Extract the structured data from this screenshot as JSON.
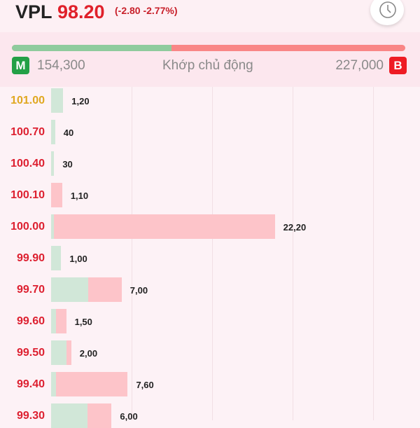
{
  "header": {
    "symbol": "VPL",
    "price": "98.20",
    "change": "(-2.80 -2.77%)",
    "history_icon": "clock-icon"
  },
  "summary": {
    "buy_badge": "M",
    "buy_volume": "154,300",
    "label": "Khớp chủ động",
    "sell_badge": "B",
    "sell_volume": "227,000",
    "buy_fraction": 0.405,
    "colors": {
      "buy": "#8fcb9d",
      "sell": "#f98686"
    }
  },
  "ladder": {
    "colors": {
      "ceiling": "#e0a820",
      "up": "#dd2030",
      "buy_bar": "#d1e7d8",
      "sell_bar": "#fdc4c9"
    },
    "rows": [
      {
        "price": "101.00",
        "price_type": "ceiling",
        "qty": "1,20",
        "buy": 1.2,
        "sell": 0
      },
      {
        "price": "100.70",
        "price_type": "up",
        "qty": "40",
        "buy": 0.4,
        "sell": 0
      },
      {
        "price": "100.40",
        "price_type": "up",
        "qty": "30",
        "buy": 0.3,
        "sell": 0
      },
      {
        "price": "100.10",
        "price_type": "up",
        "qty": "1,10",
        "buy": 0,
        "sell": 1.1
      },
      {
        "price": "100.00",
        "price_type": "up",
        "qty": "22,20",
        "buy": 0.3,
        "sell": 21.9
      },
      {
        "price": "99.90",
        "price_type": "up",
        "qty": "1,00",
        "buy": 1.0,
        "sell": 0
      },
      {
        "price": "99.70",
        "price_type": "up",
        "qty": "7,00",
        "buy": 3.7,
        "sell": 3.3
      },
      {
        "price": "99.60",
        "price_type": "up",
        "qty": "1,50",
        "buy": 0.5,
        "sell": 1.0
      },
      {
        "price": "99.50",
        "price_type": "up",
        "qty": "2,00",
        "buy": 1.5,
        "sell": 0.5
      },
      {
        "price": "99.40",
        "price_type": "up",
        "qty": "7,60",
        "buy": 0.5,
        "sell": 7.1
      },
      {
        "price": "99.30",
        "price_type": "up",
        "qty": "6,00",
        "buy": 3.6,
        "sell": 2.4
      }
    ]
  }
}
